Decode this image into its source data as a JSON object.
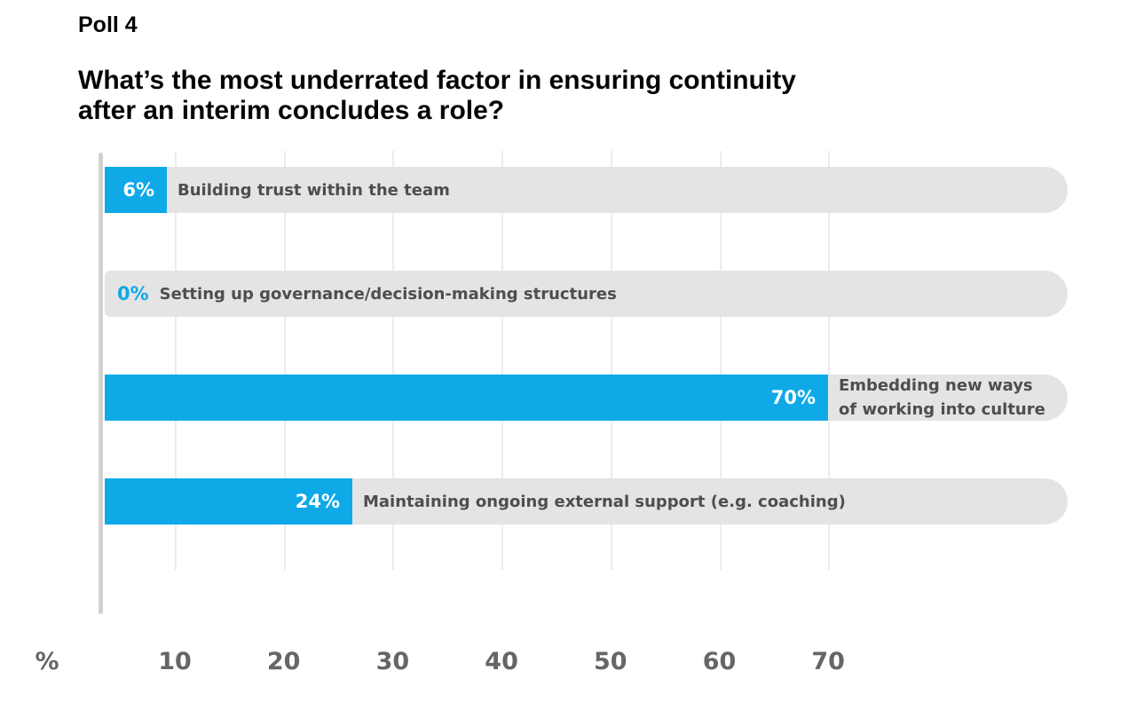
{
  "header": {
    "poll_label": "Poll 4",
    "question_line1": "What’s the most underrated factor in ensuring continuity",
    "question_line2": "after an interim concludes a role?"
  },
  "chart_data": {
    "type": "bar",
    "orientation": "horizontal",
    "title": "Poll 4",
    "question": "What’s the most underrated factor in ensuring continuity after an interim concludes a role?",
    "categories": [
      "Building trust within the team",
      "Setting up governance/decision-making structures",
      "Embedding new ways of working into culture",
      "Maintaining ongoing external support (e.g. coaching)"
    ],
    "values": [
      6,
      0,
      70,
      24
    ],
    "value_labels": [
      "6%",
      "0%",
      "70%",
      "24%"
    ],
    "xlabel": "%",
    "xticks": [
      "10",
      "20",
      "30",
      "40",
      "50",
      "60",
      "70"
    ],
    "xlim": [
      0,
      93
    ],
    "grid": true,
    "legend": false,
    "colors": {
      "bar": "#0fa9e8",
      "track": "#e5e4e4",
      "value_text": "#ffffff",
      "zero_value_text": "#0fa9e8",
      "category_text": "#4e4e4e",
      "tick_text": "#666666",
      "gridline": "#ececec",
      "axis_line": "#d4d0cf"
    }
  }
}
